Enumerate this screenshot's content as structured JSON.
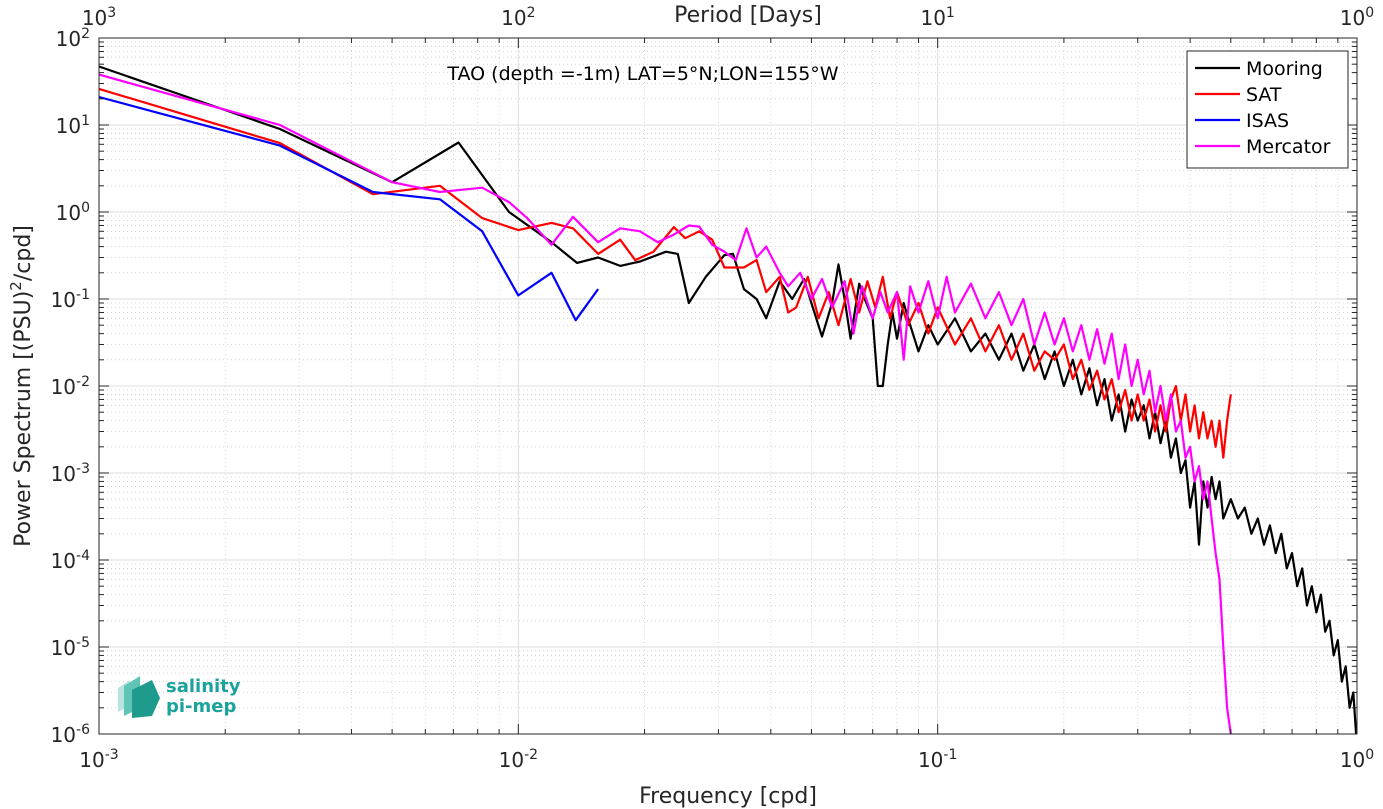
{
  "chart_data": {
    "type": "line",
    "annotation": "TAO (depth =-1m) LAT=5°N;LON=155°W",
    "xlabel": "Frequency [cpd]",
    "ylabel_main": "Power Spectrum [(PSU)",
    "ylabel_sup": "2",
    "ylabel_tail": "/cpd]",
    "x2label": "Period [Days]",
    "xscale": "log",
    "yscale": "log",
    "xlim": [
      0.001,
      1
    ],
    "ylim": [
      1e-06,
      100
    ],
    "grid": true,
    "minor_grid": true,
    "legend_position": "top-right",
    "x_ticks": [
      {
        "base": "10",
        "exp": "-3"
      },
      {
        "base": "10",
        "exp": "-2"
      },
      {
        "base": "10",
        "exp": "-1"
      },
      {
        "base": "10",
        "exp": "0"
      }
    ],
    "x2_ticks": [
      {
        "base": "10",
        "exp": "3"
      },
      {
        "base": "10",
        "exp": "2"
      },
      {
        "base": "10",
        "exp": "1"
      },
      {
        "base": "10",
        "exp": "0"
      }
    ],
    "y_ticks": [
      {
        "base": "10",
        "exp": "2"
      },
      {
        "base": "10",
        "exp": "1"
      },
      {
        "base": "10",
        "exp": "0"
      },
      {
        "base": "10",
        "exp": "-1"
      },
      {
        "base": "10",
        "exp": "-2"
      },
      {
        "base": "10",
        "exp": "-3"
      },
      {
        "base": "10",
        "exp": "-4"
      },
      {
        "base": "10",
        "exp": "-5"
      },
      {
        "base": "10",
        "exp": "-6"
      }
    ],
    "series": [
      {
        "name": "Mooring",
        "color": "#000000",
        "points": [
          [
            0.001,
            47
          ],
          [
            0.0027,
            9
          ],
          [
            0.005,
            2.2
          ],
          [
            0.0072,
            6.3
          ],
          [
            0.0095,
            1.0
          ],
          [
            0.012,
            0.45
          ],
          [
            0.0138,
            0.26
          ],
          [
            0.0155,
            0.3
          ],
          [
            0.0175,
            0.24
          ],
          [
            0.0195,
            0.27
          ],
          [
            0.0225,
            0.35
          ],
          [
            0.024,
            0.33
          ],
          [
            0.0255,
            0.09
          ],
          [
            0.028,
            0.18
          ],
          [
            0.031,
            0.32
          ],
          [
            0.0325,
            0.33
          ],
          [
            0.0345,
            0.13
          ],
          [
            0.037,
            0.1
          ],
          [
            0.039,
            0.06
          ],
          [
            0.042,
            0.16
          ],
          [
            0.045,
            0.1
          ],
          [
            0.048,
            0.17
          ],
          [
            0.05,
            0.09
          ],
          [
            0.053,
            0.037
          ],
          [
            0.056,
            0.09
          ],
          [
            0.058,
            0.25
          ],
          [
            0.06,
            0.1
          ],
          [
            0.062,
            0.035
          ],
          [
            0.065,
            0.15
          ],
          [
            0.067,
            0.1
          ],
          [
            0.07,
            0.06
          ],
          [
            0.072,
            0.01
          ],
          [
            0.074,
            0.01
          ],
          [
            0.076,
            0.03
          ],
          [
            0.078,
            0.07
          ],
          [
            0.08,
            0.035
          ],
          [
            0.083,
            0.09
          ],
          [
            0.086,
            0.05
          ],
          [
            0.09,
            0.025
          ],
          [
            0.095,
            0.05
          ],
          [
            0.1,
            0.03
          ],
          [
            0.11,
            0.06
          ],
          [
            0.12,
            0.025
          ],
          [
            0.13,
            0.04
          ],
          [
            0.14,
            0.02
          ],
          [
            0.15,
            0.04
          ],
          [
            0.16,
            0.015
          ],
          [
            0.17,
            0.03
          ],
          [
            0.18,
            0.012
          ],
          [
            0.19,
            0.025
          ],
          [
            0.2,
            0.01
          ],
          [
            0.21,
            0.02
          ],
          [
            0.22,
            0.008
          ],
          [
            0.23,
            0.016
          ],
          [
            0.24,
            0.006
          ],
          [
            0.25,
            0.012
          ],
          [
            0.26,
            0.004
          ],
          [
            0.27,
            0.008
          ],
          [
            0.28,
            0.003
          ],
          [
            0.29,
            0.007
          ],
          [
            0.3,
            0.004
          ],
          [
            0.31,
            0.006
          ],
          [
            0.32,
            0.0025
          ],
          [
            0.33,
            0.005
          ],
          [
            0.34,
            0.0022
          ],
          [
            0.35,
            0.004
          ],
          [
            0.36,
            0.0015
          ],
          [
            0.37,
            0.0025
          ],
          [
            0.38,
            0.001
          ],
          [
            0.39,
            0.0014
          ],
          [
            0.4,
            0.0004
          ],
          [
            0.41,
            0.0008
          ],
          [
            0.42,
            0.00015
          ],
          [
            0.43,
            0.0008
          ],
          [
            0.44,
            0.0004
          ],
          [
            0.45,
            0.0009
          ],
          [
            0.46,
            0.0005
          ],
          [
            0.47,
            0.0008
          ],
          [
            0.48,
            0.0003
          ],
          [
            0.5,
            0.0005
          ],
          [
            0.52,
            0.0003
          ],
          [
            0.54,
            0.0004
          ],
          [
            0.56,
            0.0002
          ],
          [
            0.58,
            0.0003
          ],
          [
            0.6,
            0.00015
          ],
          [
            0.62,
            0.00025
          ],
          [
            0.64,
            0.00012
          ],
          [
            0.66,
            0.0002
          ],
          [
            0.68,
            8e-05
          ],
          [
            0.7,
            0.00012
          ],
          [
            0.72,
            5e-05
          ],
          [
            0.74,
            8e-05
          ],
          [
            0.76,
            3e-05
          ],
          [
            0.78,
            5e-05
          ],
          [
            0.8,
            2.5e-05
          ],
          [
            0.82,
            4e-05
          ],
          [
            0.84,
            1.5e-05
          ],
          [
            0.86,
            2e-05
          ],
          [
            0.88,
            8e-06
          ],
          [
            0.9,
            1.2e-05
          ],
          [
            0.92,
            4e-06
          ],
          [
            0.94,
            6e-06
          ],
          [
            0.96,
            2e-06
          ],
          [
            0.98,
            3e-06
          ],
          [
            0.995,
            1e-06
          ]
        ]
      },
      {
        "name": "SAT",
        "color": "#ff0000",
        "points": [
          [
            0.001,
            26
          ],
          [
            0.0027,
            6.2
          ],
          [
            0.0045,
            1.6
          ],
          [
            0.0065,
            2.0
          ],
          [
            0.0082,
            0.85
          ],
          [
            0.01,
            0.62
          ],
          [
            0.012,
            0.75
          ],
          [
            0.0135,
            0.65
          ],
          [
            0.0155,
            0.33
          ],
          [
            0.0175,
            0.48
          ],
          [
            0.019,
            0.28
          ],
          [
            0.021,
            0.35
          ],
          [
            0.0235,
            0.67
          ],
          [
            0.025,
            0.5
          ],
          [
            0.027,
            0.6
          ],
          [
            0.029,
            0.48
          ],
          [
            0.031,
            0.23
          ],
          [
            0.0325,
            0.23
          ],
          [
            0.0345,
            0.23
          ],
          [
            0.037,
            0.28
          ],
          [
            0.039,
            0.12
          ],
          [
            0.042,
            0.18
          ],
          [
            0.044,
            0.07
          ],
          [
            0.046,
            0.08
          ],
          [
            0.049,
            0.18
          ],
          [
            0.052,
            0.06
          ],
          [
            0.055,
            0.12
          ],
          [
            0.058,
            0.05
          ],
          [
            0.062,
            0.17
          ],
          [
            0.065,
            0.07
          ],
          [
            0.068,
            0.16
          ],
          [
            0.071,
            0.08
          ],
          [
            0.074,
            0.18
          ],
          [
            0.077,
            0.06
          ],
          [
            0.08,
            0.12
          ],
          [
            0.085,
            0.05
          ],
          [
            0.09,
            0.09
          ],
          [
            0.095,
            0.04
          ],
          [
            0.1,
            0.08
          ],
          [
            0.11,
            0.03
          ],
          [
            0.12,
            0.06
          ],
          [
            0.13,
            0.025
          ],
          [
            0.14,
            0.05
          ],
          [
            0.15,
            0.02
          ],
          [
            0.16,
            0.04
          ],
          [
            0.17,
            0.015
          ],
          [
            0.18,
            0.025
          ],
          [
            0.19,
            0.02
          ],
          [
            0.2,
            0.03
          ],
          [
            0.21,
            0.012
          ],
          [
            0.22,
            0.02
          ],
          [
            0.23,
            0.009
          ],
          [
            0.24,
            0.015
          ],
          [
            0.25,
            0.007
          ],
          [
            0.26,
            0.012
          ],
          [
            0.27,
            0.005
          ],
          [
            0.28,
            0.009
          ],
          [
            0.29,
            0.004
          ],
          [
            0.3,
            0.008
          ],
          [
            0.31,
            0.004
          ],
          [
            0.32,
            0.007
          ],
          [
            0.33,
            0.003
          ],
          [
            0.34,
            0.006
          ],
          [
            0.35,
            0.003
          ],
          [
            0.36,
            0.007
          ],
          [
            0.37,
            0.01
          ],
          [
            0.38,
            0.004
          ],
          [
            0.39,
            0.008
          ],
          [
            0.4,
            0.003
          ],
          [
            0.41,
            0.006
          ],
          [
            0.42,
            0.0025
          ],
          [
            0.43,
            0.005
          ],
          [
            0.44,
            0.0025
          ],
          [
            0.45,
            0.004
          ],
          [
            0.46,
            0.002
          ],
          [
            0.47,
            0.004
          ],
          [
            0.48,
            0.0015
          ],
          [
            0.49,
            0.004
          ],
          [
            0.5,
            0.008
          ]
        ]
      },
      {
        "name": "ISAS",
        "color": "#0000ff",
        "points": [
          [
            0.001,
            21
          ],
          [
            0.0027,
            5.8
          ],
          [
            0.0045,
            1.7
          ],
          [
            0.0065,
            1.4
          ],
          [
            0.0082,
            0.6
          ],
          [
            0.01,
            0.11
          ],
          [
            0.012,
            0.2
          ],
          [
            0.0137,
            0.057
          ],
          [
            0.0155,
            0.13
          ]
        ]
      },
      {
        "name": "Mercator",
        "color": "#ff00ff",
        "points": [
          [
            0.001,
            38
          ],
          [
            0.0027,
            10
          ],
          [
            0.005,
            2.2
          ],
          [
            0.0065,
            1.7
          ],
          [
            0.0082,
            1.9
          ],
          [
            0.0095,
            1.3
          ],
          [
            0.0105,
            0.85
          ],
          [
            0.012,
            0.42
          ],
          [
            0.0135,
            0.88
          ],
          [
            0.0155,
            0.45
          ],
          [
            0.0175,
            0.65
          ],
          [
            0.0195,
            0.6
          ],
          [
            0.0215,
            0.45
          ],
          [
            0.0235,
            0.55
          ],
          [
            0.0255,
            0.7
          ],
          [
            0.027,
            0.68
          ],
          [
            0.029,
            0.42
          ],
          [
            0.031,
            0.35
          ],
          [
            0.033,
            0.28
          ],
          [
            0.035,
            0.65
          ],
          [
            0.037,
            0.3
          ],
          [
            0.039,
            0.4
          ],
          [
            0.042,
            0.2
          ],
          [
            0.044,
            0.14
          ],
          [
            0.047,
            0.2
          ],
          [
            0.05,
            0.1
          ],
          [
            0.053,
            0.17
          ],
          [
            0.056,
            0.08
          ],
          [
            0.06,
            0.16
          ],
          [
            0.063,
            0.04
          ],
          [
            0.066,
            0.14
          ],
          [
            0.07,
            0.06
          ],
          [
            0.073,
            0.12
          ],
          [
            0.076,
            0.07
          ],
          [
            0.08,
            0.12
          ],
          [
            0.083,
            0.02
          ],
          [
            0.086,
            0.14
          ],
          [
            0.09,
            0.07
          ],
          [
            0.095,
            0.16
          ],
          [
            0.1,
            0.06
          ],
          [
            0.105,
            0.18
          ],
          [
            0.11,
            0.07
          ],
          [
            0.12,
            0.15
          ],
          [
            0.13,
            0.06
          ],
          [
            0.14,
            0.12
          ],
          [
            0.15,
            0.05
          ],
          [
            0.16,
            0.1
          ],
          [
            0.17,
            0.03
          ],
          [
            0.18,
            0.07
          ],
          [
            0.19,
            0.03
          ],
          [
            0.2,
            0.06
          ],
          [
            0.21,
            0.025
          ],
          [
            0.22,
            0.05
          ],
          [
            0.23,
            0.02
          ],
          [
            0.24,
            0.045
          ],
          [
            0.25,
            0.018
          ],
          [
            0.26,
            0.04
          ],
          [
            0.27,
            0.012
          ],
          [
            0.28,
            0.03
          ],
          [
            0.29,
            0.01
          ],
          [
            0.3,
            0.02
          ],
          [
            0.31,
            0.008
          ],
          [
            0.32,
            0.015
          ],
          [
            0.33,
            0.005
          ],
          [
            0.34,
            0.01
          ],
          [
            0.35,
            0.004
          ],
          [
            0.36,
            0.008
          ],
          [
            0.37,
            0.003
          ],
          [
            0.38,
            0.004
          ],
          [
            0.39,
            0.0015
          ],
          [
            0.4,
            0.002
          ],
          [
            0.41,
            0.0008
          ],
          [
            0.42,
            0.0012
          ],
          [
            0.43,
            0.0005
          ],
          [
            0.44,
            0.0008
          ],
          [
            0.45,
            0.0003
          ],
          [
            0.46,
            0.00012
          ],
          [
            0.47,
            6e-05
          ],
          [
            0.48,
            1e-05
          ],
          [
            0.49,
            2e-06
          ],
          [
            0.5,
            1e-06
          ]
        ]
      }
    ]
  },
  "logo": {
    "line1": "salinity",
    "line2": "pi-mep"
  }
}
